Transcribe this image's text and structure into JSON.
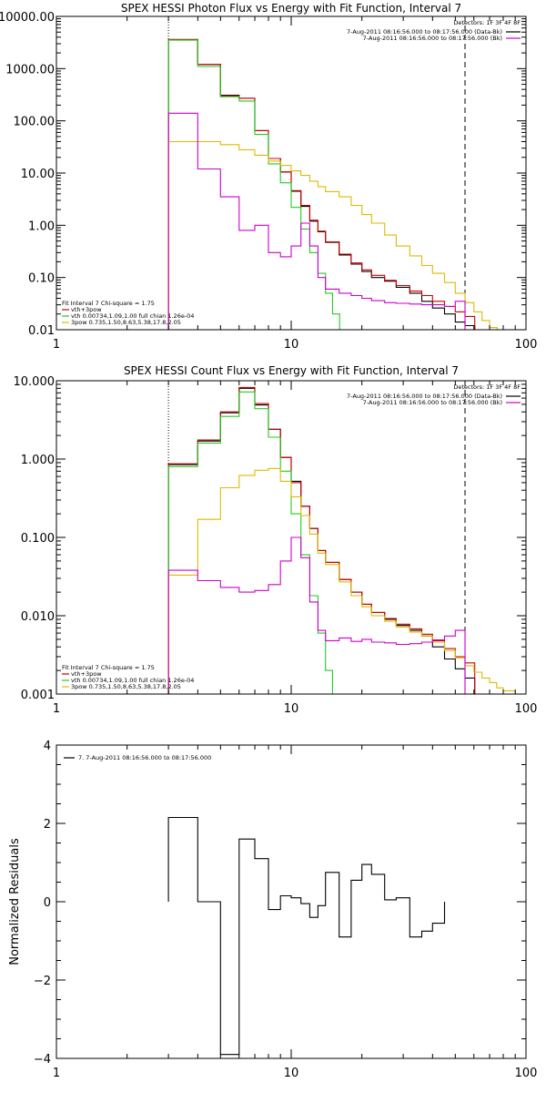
{
  "chart_data": [
    {
      "type": "line",
      "title": "SPEX HESSI Photon Flux vs Energy with Fit Function, Interval 7",
      "xlabel": "",
      "ylabel": "",
      "x_scale": "log",
      "y_scale": "log",
      "xlim": [
        1,
        100
      ],
      "ylim": [
        0.01,
        10000
      ],
      "x_ticks": [
        "1",
        "10",
        "100"
      ],
      "y_ticks": [
        "0.01",
        "0.10",
        "1.00",
        "10.00",
        "100.00",
        "1000.00",
        "10000.00"
      ],
      "energy_range_markers": [
        3,
        55
      ],
      "detectors_text": "Detectors: 1F 3F 4F 8F",
      "legend_right": [
        {
          "text": "7-Aug-2011 08:16:56.000 to 08:17:56.000 (Data-Bk)",
          "color": "#000000"
        },
        {
          "text": "7-Aug-2011 08:16:56.000 to 08:17:56.000 (Bk)",
          "color": "#cc00cc"
        }
      ],
      "legend_left": [
        {
          "text": "Fit Interval  7    Chi-square = 1.75",
          "color": "#000000"
        },
        {
          "text": "vth+3pow",
          "color": "#cc0000"
        },
        {
          "text": "vth 0.00734,1.09,1.00  full chian 1.26e-04",
          "color": "#22cc22"
        },
        {
          "text": "3pow 0.735,1.50,8.63,5.38,17.8,2.05",
          "color": "#ddbb00"
        }
      ],
      "series": [
        {
          "color": "#000000",
          "x": [
            3,
            4,
            5,
            6,
            7,
            8,
            9,
            10,
            11,
            12,
            13,
            14,
            16,
            18,
            20,
            22,
            25,
            28,
            32,
            36,
            40,
            45,
            50,
            55
          ],
          "values": [
            3600,
            1200,
            310,
            270,
            65,
            19,
            10.5,
            4.5,
            2.3,
            1.2,
            0.75,
            0.47,
            0.27,
            0.18,
            0.13,
            0.1,
            0.085,
            0.065,
            0.05,
            0.035,
            0.026,
            0.02,
            0.014,
            0.012
          ]
        },
        {
          "color": "#cc0000",
          "x": [
            3,
            4,
            5,
            6,
            7,
            8,
            9,
            10,
            11,
            12,
            13,
            14,
            16,
            18,
            20,
            22,
            25,
            28,
            32,
            36,
            40,
            45,
            50,
            55
          ],
          "values": [
            3600,
            1200,
            300,
            270,
            65,
            19,
            10.5,
            4.6,
            2.4,
            1.25,
            0.77,
            0.48,
            0.28,
            0.19,
            0.14,
            0.11,
            0.088,
            0.07,
            0.055,
            0.045,
            0.035,
            0.028,
            0.022,
            0.018
          ]
        },
        {
          "color": "#22cc22",
          "x": [
            3,
            4,
            5,
            6,
            7,
            8,
            9,
            10,
            11,
            12,
            13,
            14,
            15
          ],
          "values": [
            3500,
            1100,
            290,
            240,
            55,
            15,
            6.5,
            2.2,
            0.85,
            0.3,
            0.12,
            0.05,
            0.02
          ]
        },
        {
          "color": "#ddbb00",
          "x": [
            3,
            4,
            5,
            6,
            7,
            8,
            9,
            10,
            11,
            12,
            13,
            14,
            16,
            18,
            20,
            22,
            25,
            28,
            32,
            36,
            40,
            45,
            50,
            55,
            60,
            65,
            70
          ],
          "values": [
            40,
            40,
            35,
            28,
            22,
            17,
            14,
            11,
            9,
            7,
            5.5,
            4.4,
            3.5,
            2.4,
            1.6,
            1.1,
            0.65,
            0.4,
            0.26,
            0.17,
            0.12,
            0.08,
            0.05,
            0.033,
            0.022,
            0.015,
            0.011
          ]
        },
        {
          "color": "#cc00cc",
          "x": [
            3,
            4,
            5,
            6,
            7,
            8,
            9,
            10,
            11,
            12,
            13,
            14,
            16,
            18,
            20,
            22,
            25,
            28,
            32,
            36,
            40,
            45,
            50,
            55
          ],
          "values": [
            140,
            12,
            3.5,
            0.8,
            1.0,
            0.3,
            0.25,
            0.4,
            1.1,
            0.4,
            0.1,
            0.06,
            0.05,
            0.045,
            0.04,
            0.036,
            0.033,
            0.032,
            0.031,
            0.03,
            0.03,
            0.028,
            0.035,
            0.01
          ]
        }
      ]
    },
    {
      "type": "line",
      "title": "SPEX HESSI Count Flux vs Energy with Fit Function, Interval 7",
      "xlabel": "",
      "ylabel": "",
      "x_scale": "log",
      "y_scale": "log",
      "xlim": [
        1,
        100
      ],
      "ylim": [
        0.001,
        10
      ],
      "x_ticks": [
        "1",
        "10",
        "100"
      ],
      "y_ticks": [
        "0.001",
        "0.010",
        "0.100",
        "1.000",
        "10.000"
      ],
      "energy_range_markers": [
        3,
        55
      ],
      "detectors_text": "Detectors: 1F 3F 4F 8F",
      "legend_right": [
        {
          "text": "7-Aug-2011 08:16:56.000 to 08:17:56.000 (Data-Bk)",
          "color": "#000000"
        },
        {
          "text": "7-Aug-2011 08:16:56.000 to 08:17:56.000 (Bk)",
          "color": "#cc00cc"
        }
      ],
      "legend_left": [
        {
          "text": "Fit Interval  7    Chi-square = 1.75",
          "color": "#000000"
        },
        {
          "text": "vth+3pow",
          "color": "#cc0000"
        },
        {
          "text": "vth 0.00734,1.09,1.00  full chian 1.26e-04",
          "color": "#22cc22"
        },
        {
          "text": "3pow 0.735,1.50,8.63,5.38,17.8,2.05",
          "color": "#ddbb00"
        }
      ],
      "series": [
        {
          "color": "#000000",
          "x": [
            3,
            4,
            5,
            6,
            7,
            8,
            9,
            10,
            11,
            12,
            13,
            14,
            16,
            18,
            20,
            22,
            25,
            28,
            32,
            36,
            40,
            45,
            50,
            55
          ],
          "values": [
            0.85,
            1.7,
            3.9,
            8.0,
            4.9,
            2.4,
            1.05,
            0.52,
            0.25,
            0.13,
            0.068,
            0.048,
            0.029,
            0.02,
            0.014,
            0.011,
            0.009,
            0.0075,
            0.0065,
            0.0055,
            0.004,
            0.0028,
            0.0021,
            0.0016
          ]
        },
        {
          "color": "#cc0000",
          "x": [
            3,
            4,
            5,
            6,
            7,
            8,
            9,
            10,
            11,
            12,
            13,
            14,
            16,
            18,
            20,
            22,
            25,
            28,
            32,
            36,
            40,
            45,
            50,
            55
          ],
          "values": [
            0.87,
            1.75,
            4.0,
            8.2,
            5.1,
            2.4,
            1.05,
            0.5,
            0.25,
            0.13,
            0.068,
            0.048,
            0.029,
            0.02,
            0.014,
            0.011,
            0.0092,
            0.0078,
            0.0068,
            0.0058,
            0.0048,
            0.0038,
            0.003,
            0.0025
          ]
        },
        {
          "color": "#22cc22",
          "x": [
            3,
            4,
            5,
            6,
            7,
            8,
            9,
            10,
            11,
            12,
            13,
            14,
            15
          ],
          "values": [
            0.8,
            1.6,
            3.5,
            7.2,
            4.4,
            1.9,
            0.7,
            0.2,
            0.06,
            0.018,
            0.006,
            0.002,
            0.001
          ]
        },
        {
          "color": "#ddbb00",
          "x": [
            3,
            4,
            5,
            6,
            7,
            8,
            9,
            10,
            11,
            12,
            13,
            14,
            16,
            18,
            20,
            22,
            25,
            28,
            32,
            36,
            40,
            45,
            50,
            55,
            60,
            65,
            70,
            75,
            80,
            90,
            100
          ],
          "values": [
            0.033,
            0.17,
            0.43,
            0.62,
            0.72,
            0.76,
            0.52,
            0.33,
            0.19,
            0.11,
            0.063,
            0.045,
            0.027,
            0.018,
            0.013,
            0.01,
            0.0085,
            0.0072,
            0.0062,
            0.0055,
            0.0046,
            0.0036,
            0.0029,
            0.0023,
            0.0019,
            0.0016,
            0.0014,
            0.0012,
            0.0011,
            0.001,
            0.0009
          ]
        },
        {
          "color": "#cc00cc",
          "x": [
            3,
            4,
            5,
            6,
            7,
            8,
            9,
            10,
            11,
            12,
            13,
            14,
            16,
            18,
            20,
            22,
            25,
            28,
            32,
            36,
            40,
            45,
            50,
            55
          ],
          "values": [
            0.038,
            0.028,
            0.023,
            0.02,
            0.021,
            0.025,
            0.05,
            0.1,
            0.055,
            0.015,
            0.0065,
            0.0048,
            0.0052,
            0.0047,
            0.005,
            0.0046,
            0.0045,
            0.0043,
            0.0044,
            0.0046,
            0.0049,
            0.0055,
            0.0065,
            0.001
          ]
        }
      ]
    },
    {
      "type": "line",
      "title": "",
      "xlabel": "",
      "ylabel": "Normalized Residuals",
      "x_scale": "log",
      "y_scale": "linear",
      "xlim": [
        1,
        100
      ],
      "ylim": [
        -4,
        4
      ],
      "x_ticks": [
        "1",
        "10",
        "100"
      ],
      "y_ticks": [
        "4",
        "2",
        "0",
        "−2",
        "−4"
      ],
      "legend": [
        {
          "text": "7.  7-Aug-2011 08:16:56.000 to 08:17:56.000",
          "color": "#000000"
        }
      ],
      "series": [
        {
          "color": "#000000",
          "x": [
            3,
            4,
            5,
            6,
            7,
            8,
            9,
            10,
            11,
            12,
            13,
            14,
            16,
            18,
            20,
            22,
            25,
            28,
            32,
            36,
            40,
            45,
            50,
            55
          ],
          "values": [
            2.15,
            0.0,
            -3.9,
            1.6,
            1.1,
            -0.2,
            0.15,
            0.1,
            -0.05,
            -0.4,
            -0.1,
            0.75,
            -0.9,
            0.55,
            0.95,
            0.7,
            0.05,
            0.1,
            -0.9,
            -0.75,
            -0.55,
            null,
            null,
            null
          ]
        }
      ]
    }
  ]
}
